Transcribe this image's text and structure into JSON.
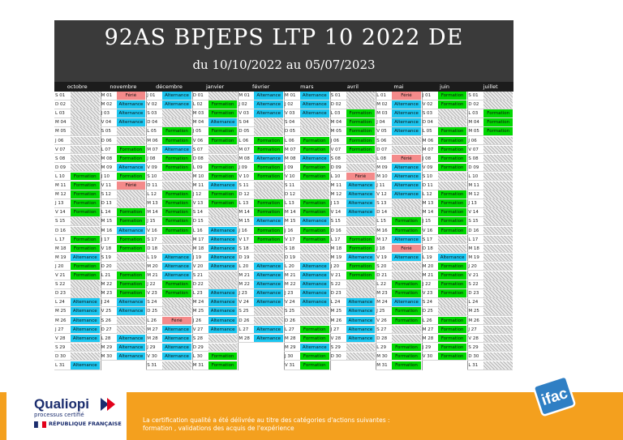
{
  "header": {
    "title": "92AS BPJEPS LTP 10 2022  DE",
    "subtitle": "du 10/10/2022 au 05/07/2023"
  },
  "colors": {
    "formation": "#00d800",
    "alternance": "#1cc6f0",
    "ferie": "#f48a8a",
    "weekend_hatch": "#b5b5b5",
    "header_bg": "#3a3a3a",
    "footer_bg": "#f4a01e"
  },
  "calendar": {
    "months": [
      "octobre",
      "novembre",
      "décembre",
      "janvier",
      "février",
      "mars",
      "avril",
      "mai",
      "juin",
      "juillet"
    ],
    "rows": [
      [
        "S 01",
        "",
        "M 01",
        "Férié",
        "J 01",
        "Alternance",
        "D 01",
        "",
        "M 01",
        "Alternance",
        "M 01",
        "Alternance",
        "S 01",
        "",
        "L 01",
        "Férié",
        "J 01",
        "Formation",
        "S 01",
        ""
      ],
      [
        "D 02",
        "",
        "M 02",
        "Alternance",
        "V 02",
        "Alternance",
        "L 02",
        "Formation",
        "J 02",
        "Alternance",
        "J 02",
        "Alternance",
        "D 02",
        "",
        "M 02",
        "Alternance",
        "V 02",
        "Formation",
        "D 02",
        ""
      ],
      [
        "L 03",
        "",
        "J 03",
        "Alternance",
        "S 03",
        "",
        "M 03",
        "Formation",
        "V 03",
        "Alternance",
        "V 03",
        "Alternance",
        "L 03",
        "Formation",
        "M 03",
        "Alternance",
        "S 03",
        "",
        "L 03",
        "Formation"
      ],
      [
        "M 04",
        "",
        "V 04",
        "Alternance",
        "D 04",
        "",
        "M 04",
        "Alternance",
        "S 04",
        "",
        "S 04",
        "",
        "M 04",
        "Formation",
        "J 04",
        "Alternance",
        "D 04",
        "",
        "M 04",
        "Formation"
      ],
      [
        "M 05",
        "",
        "S 05",
        "",
        "L 05",
        "Formation",
        "J 05",
        "Formation",
        "D 05",
        "",
        "D 05",
        "",
        "M 05",
        "Formation",
        "V 05",
        "Alternance",
        "L 05",
        "Formation",
        "M 05",
        "Formation"
      ],
      [
        "J 06",
        "",
        "D 06",
        "",
        "M 06",
        "Formation",
        "V 06",
        "Formation",
        "L 06",
        "Formation",
        "L 06",
        "Formation",
        "J 06",
        "Formation",
        "S 06",
        "",
        "M 06",
        "Formation",
        "J 06",
        ""
      ],
      [
        "V 07",
        "",
        "L 07",
        "Formation",
        "M 07",
        "Alternance",
        "S 07",
        "",
        "M 07",
        "Formation",
        "M 07",
        "Formation",
        "V 07",
        "Formation",
        "D 07",
        "",
        "M 07",
        "Formation",
        "V 07",
        ""
      ],
      [
        "S 08",
        "",
        "M 08",
        "Formation",
        "J 08",
        "Formation",
        "D 08",
        "",
        "M 08",
        "Alternance",
        "M 08",
        "Alternance",
        "S 08",
        "",
        "L 08",
        "Férié",
        "J 08",
        "Formation",
        "S 08",
        ""
      ],
      [
        "D 09",
        "",
        "M 09",
        "Alternance",
        "V 09",
        "Formation",
        "L 09",
        "Formation",
        "J 09",
        "Formation",
        "J 09",
        "Formation",
        "D 09",
        "",
        "M 09",
        "Alternance",
        "V 09",
        "Formation",
        "D 09",
        ""
      ],
      [
        "L 10",
        "Formation",
        "J 10",
        "Formation",
        "S 10",
        "",
        "M 10",
        "Formation",
        "V 10",
        "Formation",
        "V 10",
        "Formation",
        "L 10",
        "Férié",
        "M 10",
        "Alternance",
        "S 10",
        "",
        "L 10",
        ""
      ],
      [
        "M 11",
        "Formation",
        "V 11",
        "Férié",
        "D 11",
        "",
        "M 11",
        "Alternance",
        "S 11",
        "",
        "S 11",
        "",
        "M 11",
        "Alternance",
        "J 11",
        "Alternance",
        "D 11",
        "",
        "M 11",
        ""
      ],
      [
        "M 12",
        "Formation",
        "S 12",
        "",
        "L 12",
        "Formation",
        "J 12",
        "Formation",
        "D 12",
        "",
        "D 12",
        "",
        "M 12",
        "Alternance",
        "V 12",
        "Alternance",
        "L 12",
        "Formation",
        "M 12",
        ""
      ],
      [
        "J 13",
        "Formation",
        "D 13",
        "",
        "M 13",
        "Formation",
        "V 13",
        "Formation",
        "L 13",
        "Formation",
        "L 13",
        "Formation",
        "J 13",
        "Alternance",
        "S 13",
        "",
        "M 13",
        "Formation",
        "J 13",
        ""
      ],
      [
        "V 14",
        "Formation",
        "L 14",
        "Formation",
        "M 14",
        "Formation",
        "S 14",
        "",
        "M 14",
        "Formation",
        "M 14",
        "Formation",
        "V 14",
        "Alternance",
        "D 14",
        "",
        "M 14",
        "Formation",
        "V 14",
        ""
      ],
      [
        "S 15",
        "",
        "M 15",
        "Formation",
        "J 15",
        "Formation",
        "D 15",
        "",
        "M 15",
        "Alternance",
        "M 15",
        "Alternance",
        "S 15",
        "",
        "L 15",
        "Formation",
        "J 15",
        "Formation",
        "S 15",
        ""
      ],
      [
        "D 16",
        "",
        "M 16",
        "Alternance",
        "V 16",
        "Formation",
        "L 16",
        "Alternance",
        "J 16",
        "Formation",
        "J 16",
        "Formation",
        "D 16",
        "",
        "M 16",
        "Formation",
        "V 16",
        "Formation",
        "D 16",
        ""
      ],
      [
        "L 17",
        "Formation",
        "J 17",
        "Formation",
        "S 17",
        "",
        "M 17",
        "Alternance",
        "V 17",
        "Formation",
        "V 17",
        "Formation",
        "L 17",
        "Formation",
        "M 17",
        "Alternance",
        "S 17",
        "",
        "L 17",
        ""
      ],
      [
        "M 18",
        "Formation",
        "V 18",
        "Formation",
        "D 18",
        "",
        "M 18",
        "Alternance",
        "S 18",
        "",
        "S 18",
        "",
        "M 18",
        "Formation",
        "J 18",
        "Férié",
        "D 18",
        "",
        "M 18",
        ""
      ],
      [
        "M 19",
        "Alternance",
        "S 19",
        "",
        "L 19",
        "Alternance",
        "J 19",
        "Alternance",
        "D 19",
        "",
        "D 19",
        "",
        "M 19",
        "Alternance",
        "V 19",
        "Alternance",
        "L 19",
        "Alternance",
        "M 19",
        ""
      ],
      [
        "J 20",
        "Formation",
        "D 20",
        "",
        "M 20",
        "Alternance",
        "V 20",
        "Alternance",
        "L 20",
        "Alternance",
        "L 20",
        "Alternance",
        "J 20",
        "Formation",
        "S 20",
        "",
        "M 20",
        "Formation",
        "J 20",
        ""
      ],
      [
        "V 21",
        "Formation",
        "L 21",
        "Formation",
        "M 21",
        "Alternance",
        "S 21",
        "",
        "M 21",
        "Alternance",
        "M 21",
        "Alternance",
        "V 21",
        "Formation",
        "D 21",
        "",
        "M 21",
        "Formation",
        "V 21",
        ""
      ],
      [
        "S 22",
        "",
        "M 22",
        "Formation",
        "J 22",
        "Formation",
        "D 22",
        "",
        "M 22",
        "Alternance",
        "M 22",
        "Alternance",
        "S 22",
        "",
        "L 22",
        "Formation",
        "J 22",
        "Formation",
        "S 22",
        ""
      ],
      [
        "D 23",
        "",
        "M 23",
        "Formation",
        "V 23",
        "Formation",
        "L 23",
        "Alternance",
        "J 23",
        "Alternance",
        "J 23",
        "Alternance",
        "D 23",
        "",
        "M 23",
        "Formation",
        "V 23",
        "Formation",
        "D 23",
        ""
      ],
      [
        "L 24",
        "Alternance",
        "J 24",
        "Alternance",
        "S 24",
        "",
        "M 24",
        "Alternance",
        "V 24",
        "Alternance",
        "V 24",
        "Alternance",
        "L 24",
        "Alternance",
        "M 24",
        "Alternance",
        "S 24",
        "",
        "L 24",
        ""
      ],
      [
        "M 25",
        "Alternance",
        "V 25",
        "Alternance",
        "D 25",
        "",
        "M 25",
        "Alternance",
        "S 25",
        "",
        "S 25",
        "",
        "M 25",
        "Alternance",
        "J 25",
        "Formation",
        "D 25",
        "",
        "M 25",
        ""
      ],
      [
        "M 26",
        "Alternance",
        "S 26",
        "",
        "L 26",
        "Férié",
        "J 26",
        "Alternance",
        "D 26",
        "",
        "D 26",
        "",
        "M 26",
        "Alternance",
        "V 26",
        "Formation",
        "L 26",
        "Formation",
        "M 26",
        ""
      ],
      [
        "J 27",
        "Alternance",
        "D 27",
        "",
        "M 27",
        "Alternance",
        "V 27",
        "Alternance",
        "L 27",
        "Alternance",
        "L 27",
        "Formation",
        "J 27",
        "Alternance",
        "S 27",
        "",
        "M 27",
        "Formation",
        "J 27",
        ""
      ],
      [
        "V 28",
        "Alternance",
        "L 28",
        "Alternance",
        "M 28",
        "Alternance",
        "S 28",
        "",
        "M 28",
        "Alternance",
        "M 28",
        "Formation",
        "V 28",
        "Alternance",
        "D 28",
        "",
        "M 28",
        "Formation",
        "V 28",
        ""
      ],
      [
        "S 29",
        "",
        "M 29",
        "Alternance",
        "J 29",
        "Alternance",
        "D 29",
        "",
        "",
        "",
        "M 29",
        "Alternance",
        "S 29",
        "",
        "L 29",
        "Formation",
        "J 29",
        "Formation",
        "S 29",
        ""
      ],
      [
        "D 30",
        "",
        "M 30",
        "Alternance",
        "V 30",
        "Alternance",
        "L 30",
        "Formation",
        "",
        "",
        "J 30",
        "Formation",
        "D 30",
        "",
        "M 30",
        "Formation",
        "V 30",
        "Formation",
        "D 30",
        ""
      ],
      [
        "L 31",
        "Alternance",
        "",
        "",
        "S 31",
        "",
        "M 31",
        "Formation",
        "",
        "",
        "V 31",
        "Formation",
        "",
        "",
        "M 31",
        "Formation",
        "",
        "",
        "L 31",
        ""
      ]
    ]
  },
  "footer": {
    "qualiopi_name": "Qualiopi",
    "qualiopi_sub": "processus certifié",
    "republique": "RÉPUBLIQUE FRANÇAISE",
    "certification_text": "La certification qualité a été délivrée au titre des catégories d'actions suivantes : formation , validations des acquis de l'expérience",
    "ifac_logo": "ifac"
  }
}
